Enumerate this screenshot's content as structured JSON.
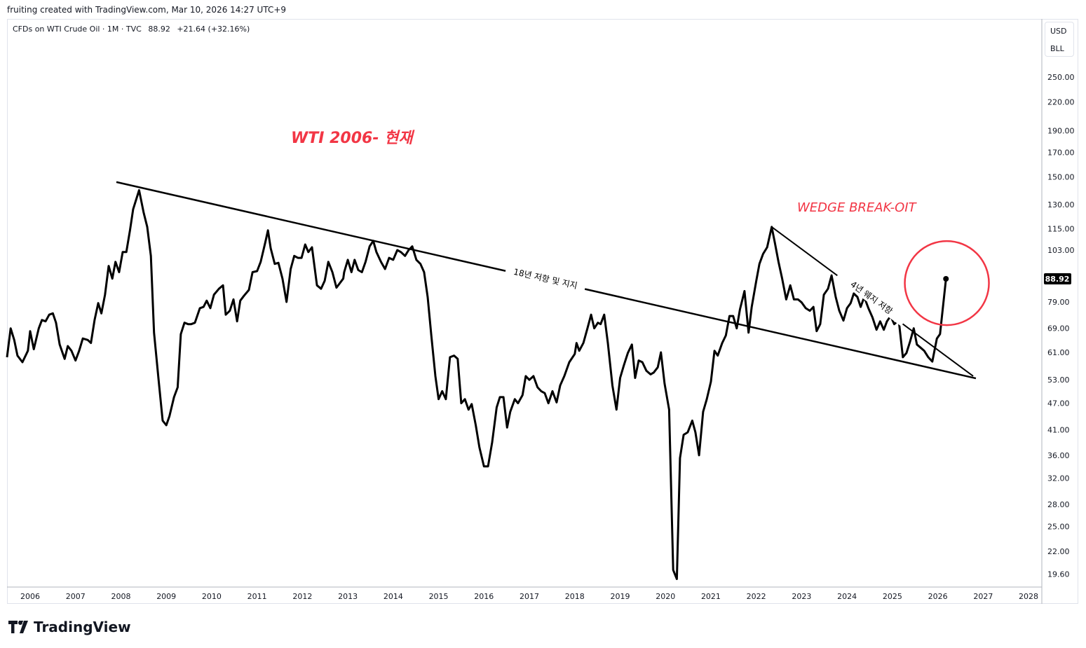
{
  "credit": "fruiting created with TradingView.com, Mar 10, 2026 14:27 UTC+9",
  "legend": {
    "symbol": "CFDs on WTI Crude Oil · 1M · TVC",
    "price": "88.92",
    "change": "+21.64 (+32.16%)"
  },
  "units": {
    "currency": "USD",
    "unit": "BLL"
  },
  "logo": {
    "text": "TradingView"
  },
  "colors": {
    "line": "#000000",
    "accent": "#f23645",
    "label_bg": "#000000"
  },
  "chart_data": {
    "type": "line",
    "title": "WTI 2006- 현재",
    "yscale": "log",
    "ylim": [
      18.5,
      300
    ],
    "xlim": [
      2005.48,
      2028.3
    ],
    "grid": false,
    "y_ticks": [
      250,
      220,
      190,
      170,
      150,
      130,
      115,
      103,
      79,
      69,
      61,
      53,
      47,
      41,
      36,
      32,
      28,
      25,
      22,
      19.6
    ],
    "y_tick_labels": [
      "250.00",
      "220.00",
      "190.00",
      "170.00",
      "150.00",
      "130.00",
      "115.00",
      "103.00",
      "79.00",
      "69.00",
      "61.00",
      "53.00",
      "47.00",
      "41.00",
      "36.00",
      "32.00",
      "28.00",
      "25.00",
      "22.00",
      "19.60"
    ],
    "x_ticks": [
      "2006",
      "2007",
      "2008",
      "2009",
      "2010",
      "2011",
      "2012",
      "2013",
      "2014",
      "2015",
      "2016",
      "2017",
      "2018",
      "2019",
      "2020",
      "2021",
      "2022",
      "2023",
      "2024",
      "2025",
      "2026",
      "2027",
      "2028"
    ],
    "last_price_label": "88.92",
    "series": [
      {
        "name": "WTI monthly close",
        "points": [
          [
            2005.49,
            59.5
          ],
          [
            2005.57,
            69
          ],
          [
            2005.65,
            65
          ],
          [
            2005.72,
            60
          ],
          [
            2005.83,
            58
          ],
          [
            2005.95,
            61.5
          ],
          [
            2006.0,
            68
          ],
          [
            2006.08,
            62
          ],
          [
            2006.19,
            69
          ],
          [
            2006.26,
            72
          ],
          [
            2006.34,
            71.5
          ],
          [
            2006.42,
            74
          ],
          [
            2006.5,
            74.5
          ],
          [
            2006.57,
            71
          ],
          [
            2006.65,
            63.5
          ],
          [
            2006.76,
            59
          ],
          [
            2006.83,
            63
          ],
          [
            2006.91,
            61.5
          ],
          [
            2007.0,
            58.5
          ],
          [
            2007.08,
            61.5
          ],
          [
            2007.16,
            65.5
          ],
          [
            2007.27,
            65
          ],
          [
            2007.34,
            64
          ],
          [
            2007.42,
            72
          ],
          [
            2007.5,
            78.5
          ],
          [
            2007.57,
            74.5
          ],
          [
            2007.65,
            82
          ],
          [
            2007.73,
            95
          ],
          [
            2007.81,
            89
          ],
          [
            2007.88,
            97
          ],
          [
            2007.96,
            92
          ],
          [
            2008.04,
            102
          ],
          [
            2008.12,
            102
          ],
          [
            2008.2,
            114
          ],
          [
            2008.27,
            127
          ],
          [
            2008.4,
            140
          ],
          [
            2008.5,
            125
          ],
          [
            2008.58,
            116
          ],
          [
            2008.66,
            100
          ],
          [
            2008.73,
            67.5
          ],
          [
            2008.83,
            53
          ],
          [
            2008.92,
            43
          ],
          [
            2009.0,
            42
          ],
          [
            2009.07,
            44
          ],
          [
            2009.17,
            48.5
          ],
          [
            2009.25,
            51
          ],
          [
            2009.32,
            67
          ],
          [
            2009.4,
            71
          ],
          [
            2009.48,
            70.5
          ],
          [
            2009.55,
            70.5
          ],
          [
            2009.63,
            71
          ],
          [
            2009.74,
            76.5
          ],
          [
            2009.82,
            77
          ],
          [
            2009.89,
            79.5
          ],
          [
            2009.97,
            76.5
          ],
          [
            2010.05,
            82
          ],
          [
            2010.16,
            84.5
          ],
          [
            2010.25,
            86
          ],
          [
            2010.31,
            74
          ],
          [
            2010.4,
            75.5
          ],
          [
            2010.48,
            80
          ],
          [
            2010.56,
            71.5
          ],
          [
            2010.63,
            79.5
          ],
          [
            2010.71,
            81.5
          ],
          [
            2010.82,
            84
          ],
          [
            2010.9,
            92
          ],
          [
            2011.0,
            92.5
          ],
          [
            2011.08,
            97
          ],
          [
            2011.18,
            107
          ],
          [
            2011.24,
            114
          ],
          [
            2011.3,
            104
          ],
          [
            2011.39,
            96
          ],
          [
            2011.47,
            96.5
          ],
          [
            2011.56,
            89
          ],
          [
            2011.65,
            79
          ],
          [
            2011.74,
            93.5
          ],
          [
            2011.82,
            100
          ],
          [
            2011.9,
            99
          ],
          [
            2011.98,
            99
          ],
          [
            2012.06,
            106
          ],
          [
            2012.13,
            102
          ],
          [
            2012.21,
            104.5
          ],
          [
            2012.32,
            86
          ],
          [
            2012.41,
            84.5
          ],
          [
            2012.49,
            88
          ],
          [
            2012.57,
            97
          ],
          [
            2012.66,
            92
          ],
          [
            2012.75,
            85
          ],
          [
            2012.9,
            89
          ],
          [
            2012.92,
            92
          ],
          [
            2013.0,
            98
          ],
          [
            2013.08,
            92
          ],
          [
            2013.15,
            98
          ],
          [
            2013.23,
            93
          ],
          [
            2013.31,
            92
          ],
          [
            2013.39,
            97
          ],
          [
            2013.48,
            105
          ],
          [
            2013.56,
            108
          ],
          [
            2013.63,
            102
          ],
          [
            2013.73,
            97
          ],
          [
            2013.82,
            93.5
          ],
          [
            2013.91,
            99
          ],
          [
            2014.0,
            98
          ],
          [
            2014.09,
            103
          ],
          [
            2014.17,
            102
          ],
          [
            2014.26,
            100
          ],
          [
            2014.34,
            103
          ],
          [
            2014.42,
            105
          ],
          [
            2014.51,
            98
          ],
          [
            2014.6,
            96
          ],
          [
            2014.68,
            92
          ],
          [
            2014.76,
            81
          ],
          [
            2014.84,
            66.5
          ],
          [
            2014.93,
            54
          ],
          [
            2015.0,
            48
          ],
          [
            2015.08,
            50
          ],
          [
            2015.16,
            48
          ],
          [
            2015.25,
            59.5
          ],
          [
            2015.34,
            60
          ],
          [
            2015.42,
            59
          ],
          [
            2015.5,
            47
          ],
          [
            2015.58,
            48
          ],
          [
            2015.66,
            45.5
          ],
          [
            2015.73,
            46.8
          ],
          [
            2015.82,
            42
          ],
          [
            2015.9,
            37.5
          ],
          [
            2016.0,
            34
          ],
          [
            2016.09,
            34
          ],
          [
            2016.18,
            38.5
          ],
          [
            2016.28,
            46
          ],
          [
            2016.35,
            48.5
          ],
          [
            2016.43,
            48.5
          ],
          [
            2016.51,
            41.5
          ],
          [
            2016.58,
            45
          ],
          [
            2016.68,
            48
          ],
          [
            2016.75,
            47
          ],
          [
            2016.85,
            49
          ],
          [
            2016.92,
            54
          ],
          [
            2017.0,
            53
          ],
          [
            2017.09,
            54
          ],
          [
            2017.18,
            51
          ],
          [
            2017.26,
            50
          ],
          [
            2017.34,
            49.5
          ],
          [
            2017.42,
            47
          ],
          [
            2017.51,
            50
          ],
          [
            2017.6,
            47.2
          ],
          [
            2017.68,
            51.5
          ],
          [
            2017.77,
            54
          ],
          [
            2017.88,
            58
          ],
          [
            2018.0,
            60.5
          ],
          [
            2018.04,
            64
          ],
          [
            2018.1,
            61.5
          ],
          [
            2018.19,
            64
          ],
          [
            2018.28,
            69
          ],
          [
            2018.36,
            74
          ],
          [
            2018.43,
            69
          ],
          [
            2018.51,
            71
          ],
          [
            2018.57,
            70.5
          ],
          [
            2018.65,
            74
          ],
          [
            2018.73,
            64
          ],
          [
            2018.83,
            51.5
          ],
          [
            2018.92,
            45.5
          ],
          [
            2019.0,
            53.5
          ],
          [
            2019.08,
            57
          ],
          [
            2019.17,
            60.8
          ],
          [
            2019.26,
            63.5
          ],
          [
            2019.33,
            53.5
          ],
          [
            2019.41,
            58.5
          ],
          [
            2019.49,
            58
          ],
          [
            2019.58,
            55.5
          ],
          [
            2019.67,
            54.5
          ],
          [
            2019.74,
            55
          ],
          [
            2019.83,
            56.5
          ],
          [
            2019.9,
            61
          ],
          [
            2019.98,
            52
          ],
          [
            2020.08,
            45.5
          ],
          [
            2020.17,
            20
          ],
          [
            2020.25,
            19.1
          ],
          [
            2020.32,
            35.5
          ],
          [
            2020.4,
            40
          ],
          [
            2020.49,
            40.5
          ],
          [
            2020.59,
            43
          ],
          [
            2020.66,
            40.5
          ],
          [
            2020.74,
            36
          ],
          [
            2020.83,
            45
          ],
          [
            2020.91,
            48
          ],
          [
            2021.0,
            52.5
          ],
          [
            2021.08,
            61.5
          ],
          [
            2021.15,
            60
          ],
          [
            2021.25,
            64
          ],
          [
            2021.33,
            66.5
          ],
          [
            2021.41,
            73.5
          ],
          [
            2021.49,
            73.5
          ],
          [
            2021.57,
            69
          ],
          [
            2021.64,
            76
          ],
          [
            2021.74,
            83.5
          ],
          [
            2021.83,
            67.5
          ],
          [
            2021.9,
            77
          ],
          [
            2022.0,
            88
          ],
          [
            2022.07,
            96
          ],
          [
            2022.15,
            101
          ],
          [
            2022.24,
            104.5
          ],
          [
            2022.34,
            116
          ],
          [
            2022.41,
            107
          ],
          [
            2022.49,
            97
          ],
          [
            2022.57,
            89
          ],
          [
            2022.66,
            80
          ],
          [
            2022.75,
            86
          ],
          [
            2022.83,
            80
          ],
          [
            2022.92,
            80
          ],
          [
            2023.0,
            78.8
          ],
          [
            2023.09,
            76.5
          ],
          [
            2023.18,
            75.5
          ],
          [
            2023.26,
            77
          ],
          [
            2023.33,
            68
          ],
          [
            2023.41,
            70.5
          ],
          [
            2023.49,
            82
          ],
          [
            2023.58,
            84.5
          ],
          [
            2023.66,
            90.5
          ],
          [
            2023.75,
            81
          ],
          [
            2023.83,
            75.5
          ],
          [
            2023.92,
            71.8
          ],
          [
            2024.0,
            76.5
          ],
          [
            2024.08,
            78.5
          ],
          [
            2024.15,
            82.5
          ],
          [
            2024.23,
            81
          ],
          [
            2024.3,
            77
          ],
          [
            2024.38,
            81
          ],
          [
            2024.47,
            76.5
          ],
          [
            2024.56,
            73
          ],
          [
            2024.65,
            68.5
          ],
          [
            2024.73,
            71.5
          ],
          [
            2024.81,
            68.5
          ],
          [
            2024.88,
            71.5
          ],
          [
            2024.96,
            73.5
          ],
          [
            2025.04,
            70.5
          ],
          [
            2025.14,
            72
          ],
          [
            2025.23,
            59.5
          ],
          [
            2025.31,
            60.8
          ],
          [
            2025.39,
            64.5
          ],
          [
            2025.47,
            69
          ],
          [
            2025.54,
            63.5
          ],
          [
            2025.62,
            62.5
          ],
          [
            2025.7,
            61.5
          ],
          [
            2025.79,
            59.5
          ],
          [
            2025.88,
            58.2
          ],
          [
            2025.98,
            65.5
          ],
          [
            2026.05,
            67
          ],
          [
            2026.18,
            88.92
          ]
        ]
      }
    ],
    "trendlines": [
      {
        "name": "18-year resistance/support",
        "from": [
          2007.9,
          146
        ],
        "to": [
          2026.84,
          53.4
        ],
        "label": "18년 저항 및 지지"
      },
      {
        "name": "4-year wedge resistance",
        "from": [
          2022.34,
          116
        ],
        "to": [
          2026.78,
          54
        ],
        "label": "4년 웨지 저항"
      }
    ],
    "annotations": [
      {
        "text": "WTI 2006- 현재",
        "color": "#f23645"
      },
      {
        "text": "WEDGE BREAK-OIT",
        "color": "#f23645"
      },
      {
        "type": "circle",
        "center": [
          2026.2,
          87
        ],
        "color": "#f23645"
      }
    ]
  }
}
